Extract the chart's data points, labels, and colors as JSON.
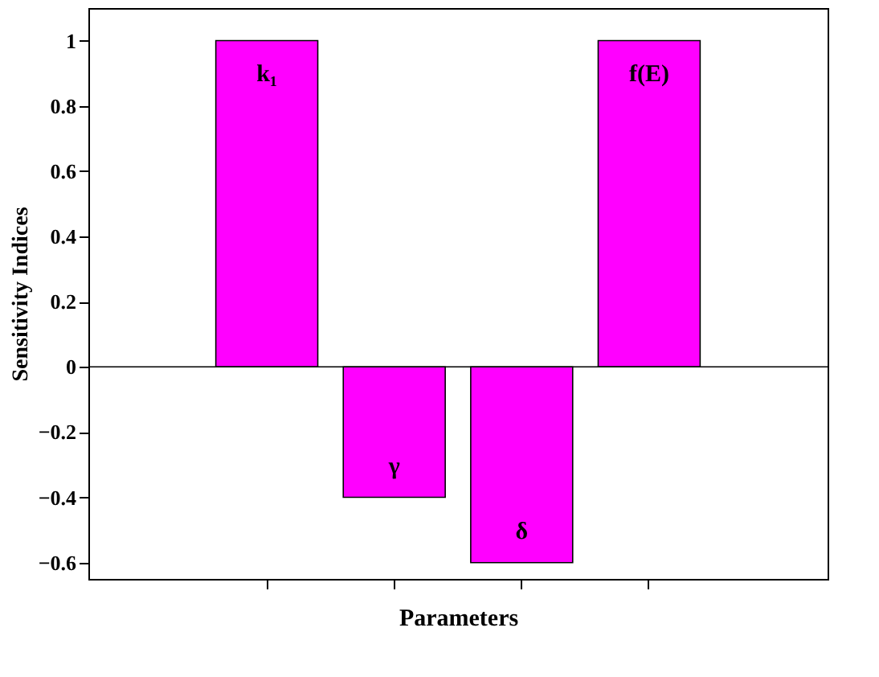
{
  "chart_data": {
    "type": "bar",
    "xlabel": "Parameters",
    "ylabel": "Sensitivity Indices",
    "categories": [
      "k₁",
      "γ",
      "δ",
      "f(E)"
    ],
    "values": [
      1,
      -0.4,
      -0.6,
      1
    ],
    "color": "#ff00ff",
    "ylim": [
      -0.65,
      1.1
    ],
    "yticks": [
      -0.6,
      -0.4,
      -0.2,
      0,
      0.2,
      0.4,
      0.6,
      0.8,
      1
    ],
    "grid": false,
    "ref_lines": [
      {
        "axis": "y",
        "value": 0,
        "color": "#000000"
      }
    ],
    "tick_labels": "y"
  }
}
